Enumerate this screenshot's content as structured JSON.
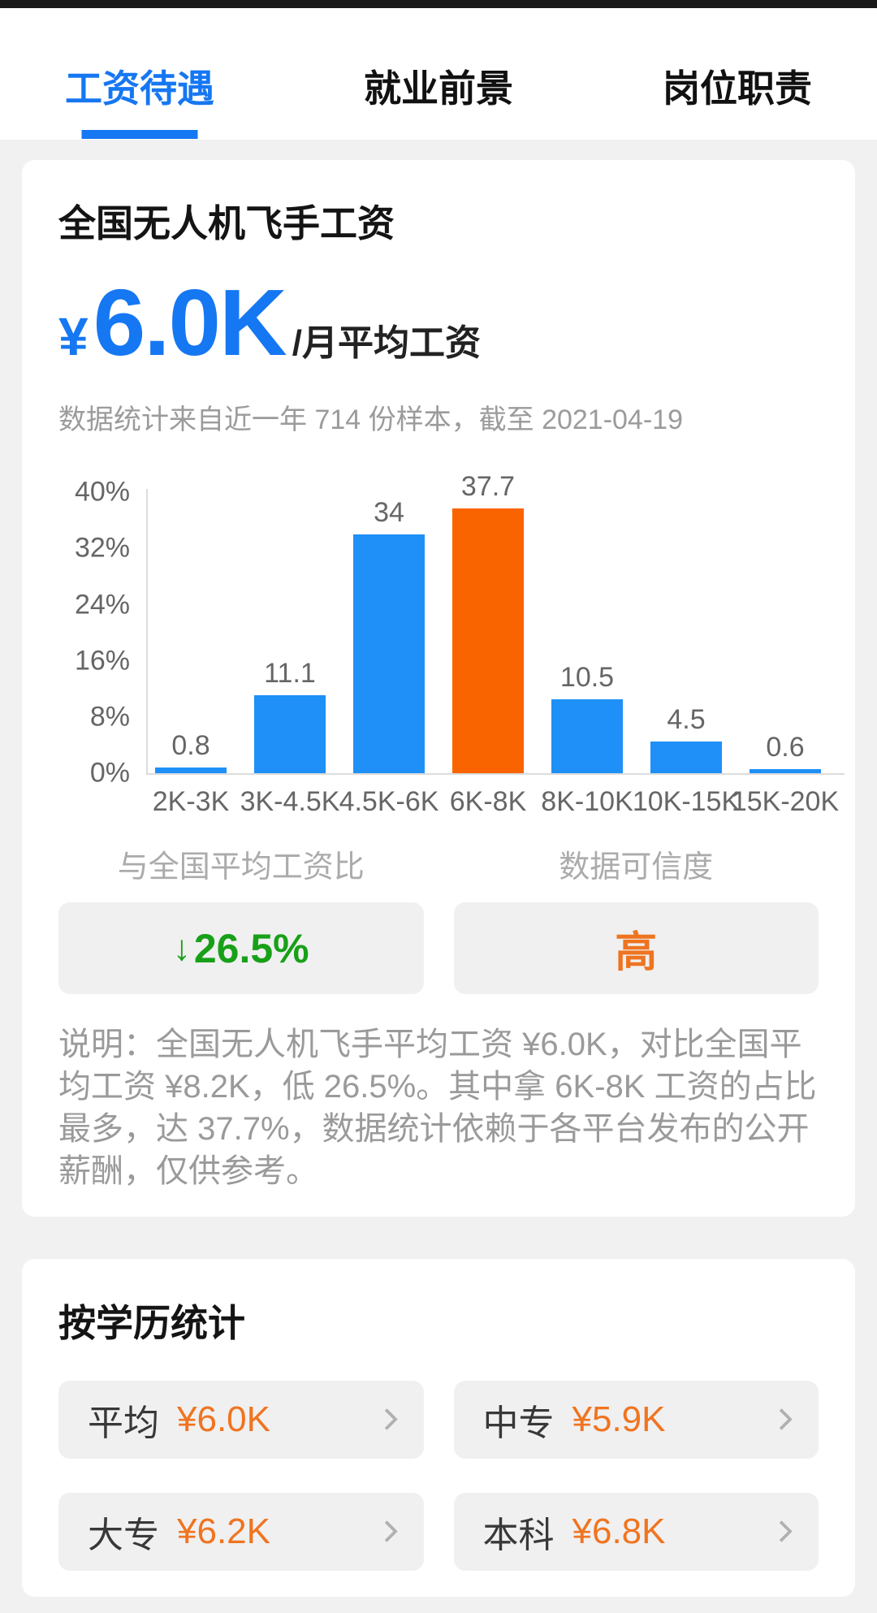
{
  "tabs": {
    "items": [
      {
        "label": "工资待遇",
        "active": true
      },
      {
        "label": "就业前景",
        "active": false
      },
      {
        "label": "岗位职责",
        "active": false
      }
    ]
  },
  "salary_card": {
    "title": "全国无人机飞手工资",
    "currency_symbol": "¥",
    "amount": "6.0K",
    "unit": "/月平均工资",
    "sample_note": "数据统计来自近一年 714 份样本，截至 2021-04-19",
    "compare_label": "与全国平均工资比",
    "compare_arrow": "↓",
    "compare_value": "26.5%",
    "confidence_label": "数据可信度",
    "confidence_value": "高",
    "description": "说明：全国无人机飞手平均工资 ¥6.0K，对比全国平均工资 ¥8.2K，低 26.5%。其中拿 6K-8K 工资的占比最多，达 37.7%，数据统计依赖于各平台发布的公开薪酬，仅供参考。"
  },
  "chart_data": {
    "type": "bar",
    "title": "",
    "xlabel": "",
    "ylabel": "",
    "categories": [
      "2K-3K",
      "3K-4.5K",
      "4.5K-6K",
      "6K-8K",
      "8K-10K",
      "10K-15K",
      "15K-20K"
    ],
    "values": [
      0.8,
      11.1,
      34,
      37.7,
      10.5,
      4.5,
      0.6
    ],
    "value_labels": [
      "0.8",
      "11.1",
      "34",
      "37.7",
      "10.5",
      "4.5",
      "0.6"
    ],
    "highlight_index": 3,
    "yticks": [
      {
        "v": 40,
        "label": "40%"
      },
      {
        "v": 32,
        "label": "32%"
      },
      {
        "v": 24,
        "label": "24%"
      },
      {
        "v": 16,
        "label": "16%"
      },
      {
        "v": 8,
        "label": "8%"
      },
      {
        "v": 0,
        "label": "0%"
      }
    ],
    "ylim": [
      0,
      40
    ],
    "grid": false,
    "legend_position": "none"
  },
  "education_card": {
    "title": "按学历统计",
    "items": [
      {
        "label": "平均",
        "value": "¥6.0K"
      },
      {
        "label": "中专",
        "value": "¥5.9K"
      },
      {
        "label": "大专",
        "value": "¥6.2K"
      },
      {
        "label": "本科",
        "value": "¥6.8K"
      }
    ]
  },
  "colors": {
    "accent_blue": "#1677f2",
    "bar_blue": "#1e90f7",
    "bar_orange": "#fa6400",
    "text_orange": "#ee7420",
    "green": "#18a018",
    "page_bg": "#f1f1f2",
    "muted_text": "#9a9a9a",
    "chart_text": "#666666"
  }
}
